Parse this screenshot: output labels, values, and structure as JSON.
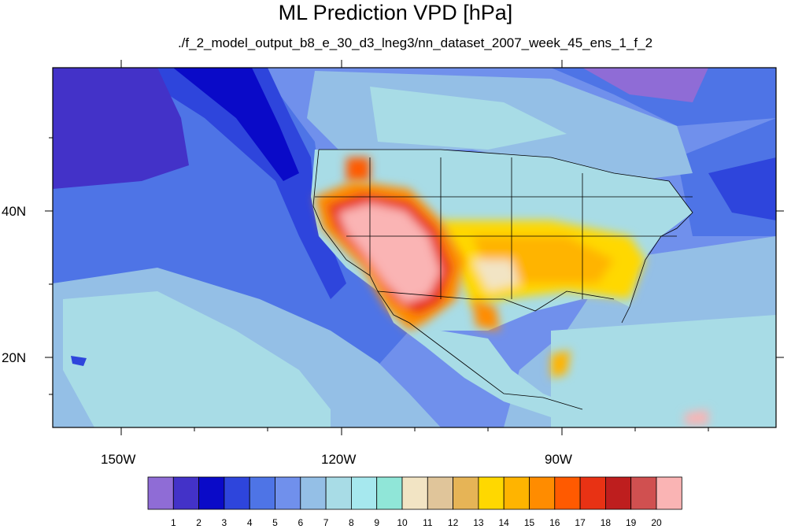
{
  "title": "ML Prediction VPD [hPa]",
  "subtitle": "./f_2_model_output_b8_e_30_d3_lneg3/nn_dataset_2007_week_45_ens_1_f_2",
  "axes": {
    "x_ticks": [
      "150W",
      "120W",
      "90W"
    ],
    "y_ticks": [
      "40N",
      "20N"
    ]
  },
  "colorbar": {
    "labels": [
      "1",
      "2",
      "3",
      "4",
      "5",
      "6",
      "7",
      "8",
      "9",
      "10",
      "11",
      "12",
      "13",
      "14",
      "15",
      "16",
      "17",
      "18",
      "19",
      "20"
    ],
    "colors": [
      "#8f6cd6",
      "#4332c8",
      "#0a0ac8",
      "#2e45dc",
      "#4e74e6",
      "#7090ec",
      "#94bfe6",
      "#a8dce6",
      "#a6e8ee",
      "#90e6d8",
      "#f2e4c4",
      "#e0c59a",
      "#e6b456",
      "#ffd800",
      "#ffb400",
      "#ff8c00",
      "#ff5a00",
      "#e83214",
      "#be1e1e",
      "#d05050",
      "#fab4b4"
    ]
  },
  "colors": {
    "ocean_far": "#7090ec",
    "ocean_near": "#a8dce6",
    "coast_deep": "#2e45dc",
    "southwest_max": "#fab4b4"
  }
}
